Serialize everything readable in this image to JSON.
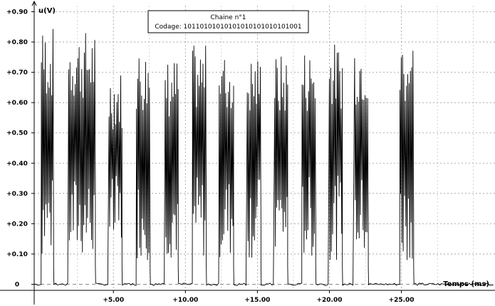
{
  "chart_data": {
    "type": "line",
    "title": "",
    "xlabel": "Temps (ms)",
    "ylabel": "u(V)",
    "xlim": [
      -0.5,
      31.5
    ],
    "ylim": [
      -0.02,
      0.92
    ],
    "grid": true,
    "legend_position": "top-center",
    "legend": {
      "line1": "Chaine n°1",
      "line2": "Codage: 10110101010101010101010101001"
    },
    "y_ticks": [
      "0",
      "+0.10",
      "+0.20",
      "+0.30",
      "+0.40",
      "+0.50",
      "+0.60",
      "+0.70",
      "+0.80",
      "+0.90"
    ],
    "x_ticks": [
      "+5.00",
      "+10.00",
      "+15.00",
      "+20.00",
      "+25.00"
    ],
    "y_tick_values": [
      0,
      0.1,
      0.2,
      0.3,
      0.4,
      0.5,
      0.6,
      0.7,
      0.8,
      0.9
    ],
    "x_tick_values": [
      5,
      10,
      15,
      20,
      25
    ],
    "baseline_level": 0,
    "series": [
      {
        "color": "#000000",
        "bursts": [
          {
            "start": 0.0,
            "end": 0.85,
            "peak": 0.85
          },
          {
            "start": 1.9,
            "end": 3.75,
            "peak": 0.84
          },
          {
            "start": 4.7,
            "end": 5.6,
            "peak": 0.71
          },
          {
            "start": 6.6,
            "end": 7.55,
            "peak": 0.78
          },
          {
            "start": 8.6,
            "end": 9.5,
            "peak": 0.75
          },
          {
            "start": 10.5,
            "end": 11.45,
            "peak": 0.79
          },
          {
            "start": 12.35,
            "end": 13.35,
            "peak": 0.76
          },
          {
            "start": 14.3,
            "end": 15.25,
            "peak": 0.76
          },
          {
            "start": 16.2,
            "end": 17.1,
            "peak": 0.76
          },
          {
            "start": 18.1,
            "end": 19.05,
            "peak": 0.78
          },
          {
            "start": 20.0,
            "end": 20.9,
            "peak": 0.8
          },
          {
            "start": 21.75,
            "end": 22.7,
            "peak": 0.82
          },
          {
            "start": 24.9,
            "end": 25.85,
            "peak": 0.82
          }
        ]
      }
    ]
  }
}
